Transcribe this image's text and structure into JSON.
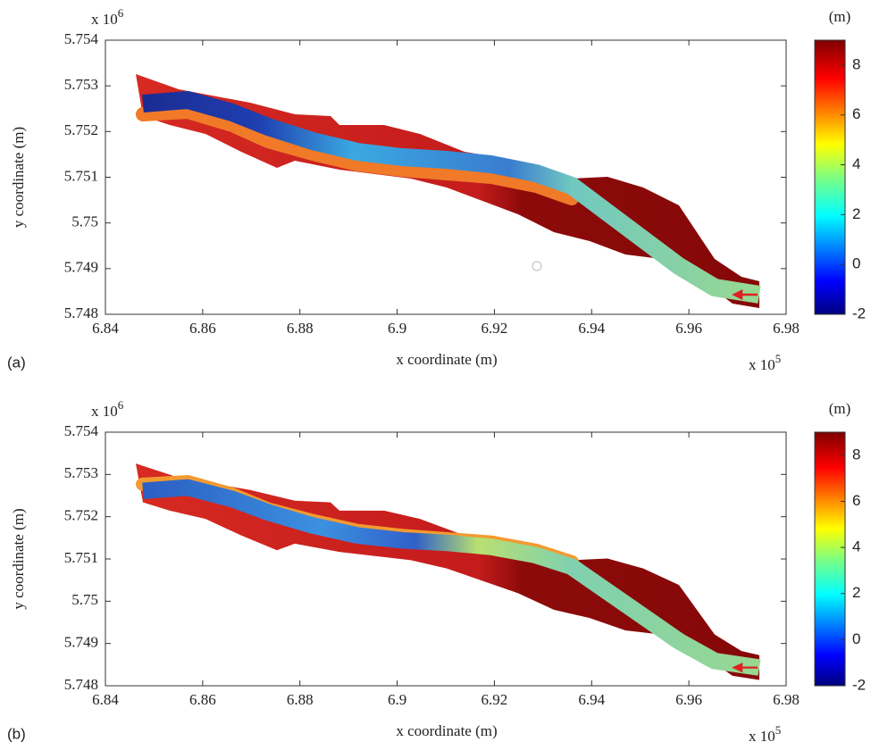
{
  "chart_data": [
    {
      "type": "heatmap",
      "panel_label": "(a)",
      "xlabel": "x coordinate (m)",
      "ylabel": "y coordinate (m)",
      "x_multiplier": {
        "base": "x 10",
        "exponent": "5"
      },
      "y_multiplier": {
        "base": "x 10",
        "exponent": "6"
      },
      "xlim": [
        6.84,
        6.98
      ],
      "xticks": [
        6.84,
        6.86,
        6.88,
        6.9,
        6.92,
        6.94,
        6.96,
        6.98
      ],
      "ylim": [
        5.748,
        5.754
      ],
      "yticks": [
        5.748,
        5.749,
        5.75,
        5.751,
        5.752,
        5.753,
        5.754
      ],
      "colorbar": {
        "label": "(m)",
        "lim": [
          -2,
          9
        ],
        "ticks": [
          -2,
          0,
          2,
          4,
          6,
          8
        ],
        "colormap": "jet"
      }
    },
    {
      "type": "heatmap",
      "panel_label": "(b)",
      "xlabel": "x coordinate (m)",
      "ylabel": "y coordinate (m)",
      "x_multiplier": {
        "base": "x 10",
        "exponent": "5"
      },
      "y_multiplier": {
        "base": "x 10",
        "exponent": "6"
      },
      "xlim": [
        6.84,
        6.98
      ],
      "xticks": [
        6.84,
        6.86,
        6.88,
        6.9,
        6.92,
        6.94,
        6.96,
        6.98
      ],
      "ylim": [
        5.748,
        5.754
      ],
      "yticks": [
        5.748,
        5.749,
        5.75,
        5.751,
        5.752,
        5.753,
        5.754
      ],
      "colorbar": {
        "label": "(m)",
        "lim": [
          -2,
          9
        ],
        "ticks": [
          -2,
          0,
          2,
          4,
          6,
          8
        ],
        "colormap": "jet"
      }
    }
  ]
}
